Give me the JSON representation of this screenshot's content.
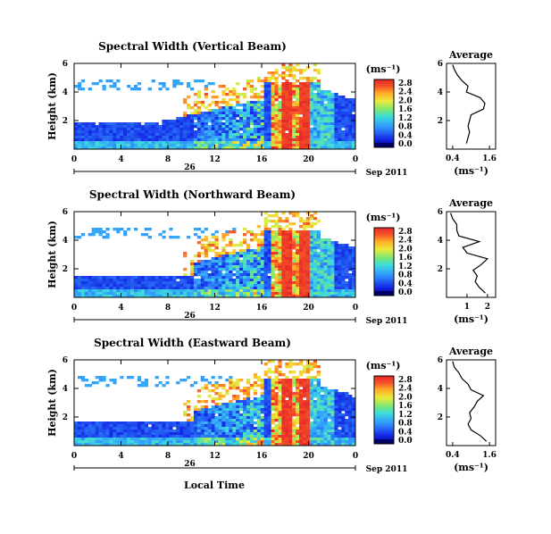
{
  "figure": {
    "xlabel": "Local Time",
    "date_label": "Sep 2011",
    "date_label_2": "Sep 2011",
    "date_label_3": "Sep 2011",
    "ylabel": "Height (km)",
    "ylabel_2": "Height (km)",
    "ylabel_3": "Height (km)",
    "colorbar_unit": "(ms⁻¹)",
    "colorbar_unit_2": "(ms⁻¹)",
    "colorbar_unit_3": "(ms⁻¹)",
    "profile_title": "Average",
    "profile_title_2": "Average",
    "profile_title_3": "Average",
    "profile_unit": "(ms⁻¹)",
    "profile_unit_2": "(ms⁻¹)",
    "profile_unit_3": "(ms⁻¹)"
  },
  "chart_data": [
    {
      "type": "heatmap",
      "title": "Spectral Width (Vertical Beam)",
      "x_ticks": [
        "0",
        "4",
        "8",
        "12",
        "16",
        "20",
        "0"
      ],
      "day_label": "26",
      "y_ticks": [
        "6",
        "4",
        "2"
      ],
      "ylim": [
        0,
        6
      ],
      "xlim": [
        0,
        24
      ],
      "colorbar_ticks": [
        "2.8",
        "2.4",
        "2.0",
        "1.6",
        "1.2",
        "0.8",
        "0.4",
        "0.0"
      ],
      "colorbar_range": [
        0,
        3.0
      ],
      "profile": {
        "x_ticks": [
          "0.4",
          "1.6"
        ],
        "xlim": [
          0.2,
          1.8
        ],
        "y_ticks": [
          "6",
          "4",
          "2"
        ],
        "ylim": [
          0,
          6
        ],
        "heights": [
          0.4,
          0.8,
          1.2,
          1.6,
          2.0,
          2.4,
          2.8,
          3.2,
          3.6,
          4.0,
          4.4,
          4.8,
          5.2,
          5.6,
          5.9
        ],
        "values": [
          0.85,
          0.9,
          0.95,
          0.9,
          0.95,
          1.0,
          1.4,
          1.45,
          1.3,
          0.85,
          0.9,
          0.7,
          0.55,
          0.45,
          0.4
        ]
      }
    },
    {
      "type": "heatmap",
      "title": "Spectral Width (Northward Beam)",
      "x_ticks": [
        "0",
        "4",
        "8",
        "12",
        "16",
        "20",
        "0"
      ],
      "day_label": "26",
      "y_ticks": [
        "6",
        "4",
        "2"
      ],
      "ylim": [
        0,
        6
      ],
      "xlim": [
        0,
        24
      ],
      "colorbar_ticks": [
        "2.8",
        "2.4",
        "2.0",
        "1.6",
        "1.2",
        "0.8",
        "0.4",
        "0.0"
      ],
      "colorbar_range": [
        0,
        3.0
      ],
      "profile": {
        "x_ticks": [
          "1",
          "2"
        ],
        "xlim": [
          0,
          2.4
        ],
        "y_ticks": [
          "6",
          "4",
          "2"
        ],
        "ylim": [
          0,
          6
        ],
        "heights": [
          0.3,
          0.7,
          1.1,
          1.5,
          1.9,
          2.3,
          2.7,
          3.1,
          3.5,
          3.9,
          4.3,
          4.7,
          5.1,
          5.5,
          5.9
        ],
        "values": [
          1.9,
          1.6,
          1.4,
          1.5,
          1.3,
          1.7,
          2.0,
          1.0,
          0.8,
          1.6,
          0.6,
          0.5,
          0.5,
          0.3,
          0.2
        ]
      }
    },
    {
      "type": "heatmap",
      "title": "Spectral Width (Eastward Beam)",
      "x_ticks": [
        "0",
        "4",
        "8",
        "12",
        "16",
        "20",
        "0"
      ],
      "day_label": "26",
      "y_ticks": [
        "6",
        "4",
        "2"
      ],
      "ylim": [
        0,
        6
      ],
      "xlim": [
        0,
        24
      ],
      "colorbar_ticks": [
        "2.8",
        "2.4",
        "2.0",
        "1.6",
        "1.2",
        "0.8",
        "0.4",
        "0.0"
      ],
      "colorbar_range": [
        0,
        3.0
      ],
      "profile": {
        "x_ticks": [
          "0.4",
          "1.6"
        ],
        "xlim": [
          0.2,
          1.8
        ],
        "y_ticks": [
          "6",
          "4",
          "2"
        ],
        "ylim": [
          0,
          6
        ],
        "heights": [
          0.3,
          0.7,
          1.1,
          1.5,
          1.9,
          2.3,
          2.7,
          3.1,
          3.5,
          3.9,
          4.3,
          4.7,
          5.1,
          5.5,
          5.9
        ],
        "values": [
          1.5,
          1.3,
          1.0,
          0.9,
          1.0,
          0.95,
          1.1,
          1.2,
          1.4,
          1.0,
          0.9,
          0.7,
          0.6,
          0.45,
          0.4
        ]
      }
    }
  ]
}
